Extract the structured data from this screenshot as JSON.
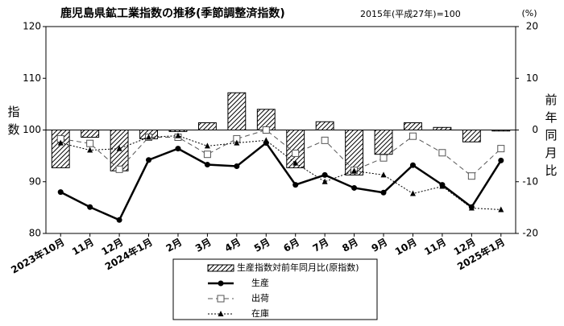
{
  "chart_data": {
    "type": "combo",
    "title": "鹿児島県鉱工業指数の推移(季節調整済指数)",
    "subtitle": "2015年(平成27年)=100",
    "y_label": "指数",
    "y2_label": "前年同月比",
    "y2_unit": "(%)",
    "categories": [
      "2023年10月",
      "11月",
      "12月",
      "2024年1月",
      "2月",
      "3月",
      "4月",
      "5月",
      "6月",
      "7月",
      "8月",
      "9月",
      "10月",
      "11月",
      "12月",
      "2025年1月"
    ],
    "ylim": [
      80,
      120
    ],
    "yticks": [
      80,
      90,
      100,
      110,
      120
    ],
    "y2lim": [
      -20,
      20
    ],
    "y2ticks": [
      -20,
      -10,
      0,
      10,
      20
    ],
    "grid": false,
    "series": [
      {
        "name": "生産指数対前年同月比(原指数)",
        "type": "bar",
        "axis": "y2",
        "color": "#000000",
        "values": [
          -7.3,
          -1.4,
          -7.9,
          -1.7,
          -0.3,
          1.4,
          7.2,
          4.0,
          -7.3,
          1.6,
          -8.7,
          -4.7,
          1.4,
          0.5,
          -2.3,
          -0.2
        ]
      },
      {
        "name": "生産",
        "type": "line",
        "color": "#000000",
        "dash": "solid",
        "marker": "circle",
        "values": [
          88.0,
          85.1,
          82.6,
          94.2,
          96.4,
          93.3,
          93.0,
          97.5,
          89.4,
          91.3,
          88.8,
          87.9,
          93.2,
          89.4,
          85.1,
          94.1
        ]
      },
      {
        "name": "出荷",
        "type": "line",
        "color": "#555555",
        "dash": "dashed",
        "marker": "square",
        "values": [
          98.3,
          97.4,
          92.4,
          98.6,
          98.6,
          95.3,
          98.3,
          100.0,
          95.5,
          98.0,
          92.2,
          94.6,
          98.8,
          95.6,
          91.1,
          96.4
        ]
      },
      {
        "name": "在庫",
        "type": "line",
        "color": "#000000",
        "dash": "dotted",
        "marker": "triangle",
        "values": [
          97.5,
          96.1,
          96.4,
          98.6,
          98.9,
          96.9,
          97.5,
          98.0,
          93.6,
          90.0,
          92.1,
          91.3,
          87.7,
          89.1,
          84.9,
          84.6
        ]
      }
    ]
  }
}
